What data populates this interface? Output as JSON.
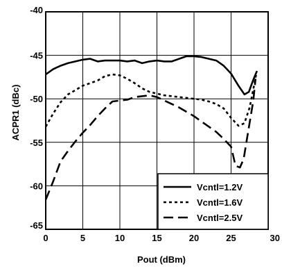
{
  "chart_data": {
    "type": "line",
    "title": "",
    "xlabel": "Pout (dBm)",
    "ylabel": "ACPR1 (dBc)",
    "xlim": [
      0,
      30
    ],
    "ylim": [
      -65,
      -40
    ],
    "x_ticks": [
      "0",
      "5",
      "10",
      "15",
      "20",
      "25",
      "30"
    ],
    "y_ticks": [
      "-40",
      "-45",
      "-50",
      "-55",
      "-60",
      "-65"
    ],
    "grid": true,
    "legend_position": "bottom-right",
    "series": [
      {
        "name": "Vcntl=1.2V",
        "style": "solid",
        "color": "#000000",
        "points": [
          [
            0,
            -47.2
          ],
          [
            1,
            -46.6
          ],
          [
            2,
            -46.2
          ],
          [
            3,
            -45.9
          ],
          [
            4,
            -45.7
          ],
          [
            5,
            -45.5
          ],
          [
            6,
            -45.4
          ],
          [
            7,
            -45.7
          ],
          [
            8,
            -45.6
          ],
          [
            9,
            -45.6
          ],
          [
            10,
            -45.6
          ],
          [
            11,
            -45.7
          ],
          [
            12,
            -45.6
          ],
          [
            13,
            -45.9
          ],
          [
            14,
            -45.7
          ],
          [
            15,
            -45.6
          ],
          [
            16,
            -45.7
          ],
          [
            17,
            -45.7
          ],
          [
            18,
            -45.4
          ],
          [
            19,
            -45.1
          ],
          [
            20,
            -45.1
          ],
          [
            21,
            -45.2
          ],
          [
            22,
            -45.4
          ],
          [
            23,
            -45.6
          ],
          [
            24,
            -46.2
          ],
          [
            25,
            -47.1
          ],
          [
            26,
            -48.5
          ],
          [
            26.8,
            -49.5
          ],
          [
            27.4,
            -49.2
          ],
          [
            28,
            -47.8
          ],
          [
            28.5,
            -46.8
          ]
        ]
      },
      {
        "name": "Vcntl=1.6V",
        "style": "short-dash",
        "color": "#000000",
        "points": [
          [
            0,
            -53.2
          ],
          [
            1,
            -51.7
          ],
          [
            2,
            -50.4
          ],
          [
            3,
            -49.5
          ],
          [
            4,
            -49.0
          ],
          [
            5,
            -48.5
          ],
          [
            6,
            -48.2
          ],
          [
            7,
            -47.9
          ],
          [
            8,
            -47.4
          ],
          [
            9,
            -47.2
          ],
          [
            10,
            -47.3
          ],
          [
            11,
            -47.7
          ],
          [
            12,
            -48.2
          ],
          [
            13,
            -48.8
          ],
          [
            14,
            -49.2
          ],
          [
            15,
            -49.4
          ],
          [
            16,
            -49.6
          ],
          [
            17,
            -49.7
          ],
          [
            18,
            -49.8
          ],
          [
            19,
            -49.9
          ],
          [
            20,
            -50.0
          ],
          [
            21,
            -50.1
          ],
          [
            22,
            -50.3
          ],
          [
            23,
            -50.6
          ],
          [
            24,
            -51.1
          ],
          [
            25,
            -52.2
          ],
          [
            26,
            -53.1
          ],
          [
            26.8,
            -52.8
          ],
          [
            27.5,
            -51.0
          ],
          [
            28,
            -48.9
          ],
          [
            28.4,
            -47.1
          ]
        ]
      },
      {
        "name": "Vcntl=2.5V",
        "style": "long-dash",
        "color": "#000000",
        "points": [
          [
            0,
            -61.6
          ],
          [
            1,
            -59.5
          ],
          [
            2,
            -57.2
          ],
          [
            3,
            -56.0
          ],
          [
            4,
            -54.9
          ],
          [
            5,
            -53.9
          ],
          [
            6,
            -53.0
          ],
          [
            7,
            -52.0
          ],
          [
            8,
            -51.1
          ],
          [
            9,
            -50.3
          ],
          [
            10,
            -50.2
          ],
          [
            11,
            -50.1
          ],
          [
            12,
            -49.8
          ],
          [
            13,
            -49.7
          ],
          [
            14,
            -49.6
          ],
          [
            15,
            -49.8
          ],
          [
            16,
            -50.2
          ],
          [
            17,
            -50.6
          ],
          [
            18,
            -51.0
          ],
          [
            19,
            -51.5
          ],
          [
            20,
            -52.0
          ],
          [
            21,
            -52.6
          ],
          [
            22,
            -53.2
          ],
          [
            23,
            -53.8
          ],
          [
            24,
            -54.6
          ],
          [
            25,
            -55.5
          ],
          [
            25.6,
            -57.7
          ],
          [
            26.2,
            -57.9
          ],
          [
            26.7,
            -56.9
          ],
          [
            27.3,
            -53.8
          ],
          [
            28,
            -50.2
          ],
          [
            28.3,
            -47.7
          ]
        ]
      }
    ]
  }
}
